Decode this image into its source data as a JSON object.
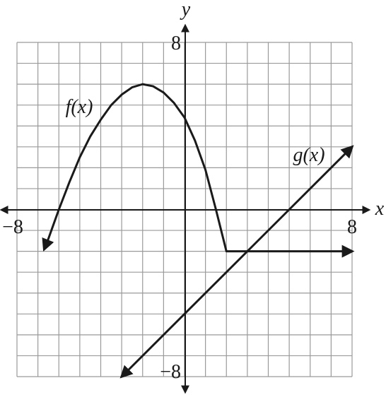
{
  "chart_data": {
    "type": "line",
    "xlabel": "x",
    "ylabel": "y",
    "xlim": [
      -8,
      8
    ],
    "ylim": [
      -8,
      8
    ],
    "xticks": [
      {
        "value": -8,
        "label": "−8"
      },
      {
        "value": 8,
        "label": "8"
      }
    ],
    "yticks": [
      {
        "value": -8,
        "label": "−8"
      },
      {
        "value": 8,
        "label": "8"
      }
    ],
    "grid": true,
    "xgrid": [
      -8,
      -7,
      -6,
      -5,
      -4,
      -3,
      -2,
      -1,
      0,
      1,
      2,
      3,
      4,
      5,
      6,
      7,
      8
    ],
    "ygrid": [
      -8,
      -7,
      -6,
      -5,
      -4,
      -3,
      -2,
      -1,
      0,
      1,
      2,
      3,
      4,
      5,
      6,
      7,
      8
    ],
    "series": [
      {
        "name": "f(x)",
        "color": "#1a1a1a",
        "x": [
          -6.7,
          -6.5,
          -6,
          -5.5,
          -5,
          -4.5,
          -4,
          -3.5,
          -3,
          -2.5,
          -2,
          -1.5,
          -1,
          -0.5,
          0,
          0.5,
          1,
          1.5,
          2,
          8
        ],
        "values": [
          -1.9,
          -1.4,
          0,
          1.3,
          2.5,
          3.5,
          4.3,
          5,
          5.5,
          5.85,
          6,
          5.9,
          5.6,
          5.1,
          4.4,
          3.3,
          1.9,
          0,
          -2,
          -2
        ]
      },
      {
        "name": "g(x)",
        "color": "#1a1a1a",
        "x": [
          -3,
          8
        ],
        "values": [
          -8,
          3
        ]
      }
    ]
  }
}
